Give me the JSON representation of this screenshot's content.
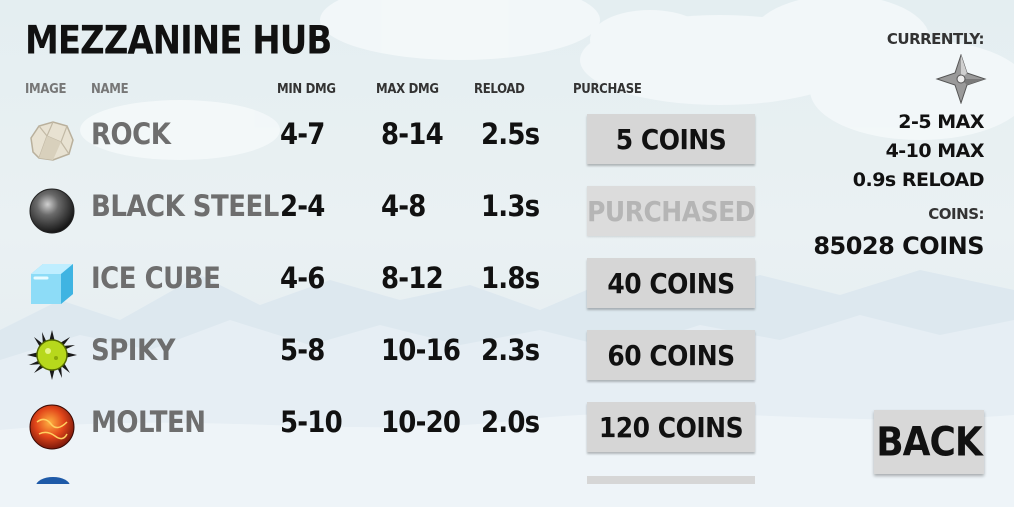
{
  "shop": {
    "title": "MEZZANINE HUB",
    "columns": {
      "image": "IMAGE",
      "name": "NAME",
      "min_dmg": "MIN DMG",
      "max_dmg": "MAX DMG",
      "reload": "RELOAD",
      "purchase": "PURCHASE"
    },
    "items": [
      {
        "icon": "rock-icon",
        "name": "ROCK",
        "min": "4-7",
        "max": "8-14",
        "reload": "2.5s",
        "purchase": "5 COINS",
        "purchased": false
      },
      {
        "icon": "black-steel-ball-icon",
        "name": "BLACK STEEL",
        "min": "2-4",
        "max": "4-8",
        "reload": "1.3s",
        "purchase": "PURCHASED",
        "purchased": true
      },
      {
        "icon": "ice-cube-icon",
        "name": "ICE CUBE",
        "min": "4-6",
        "max": "8-12",
        "reload": "1.8s",
        "purchase": "40 COINS",
        "purchased": false
      },
      {
        "icon": "spiky-ball-icon",
        "name": "SPIKY",
        "min": "5-8",
        "max": "10-16",
        "reload": "2.3s",
        "purchase": "60 COINS",
        "purchased": false
      },
      {
        "icon": "molten-ball-icon",
        "name": "MOLTEN",
        "min": "5-10",
        "max": "10-20",
        "reload": "2.0s",
        "purchase": "120 COINS",
        "purchased": false
      }
    ]
  },
  "current": {
    "label": "CURRENTLY:",
    "icon": "shuriken-icon",
    "min_line": "2-5 MAX",
    "max_line": "4-10 MAX",
    "reload_line": "0.9s RELOAD",
    "coins_label": "COINS:",
    "coins_value": "85028 COINS"
  },
  "back_label": "BACK",
  "colors": {
    "button": "#d6d6d6",
    "purchased_text": "#b5b5b5",
    "name_text": "#6e6e6e"
  }
}
